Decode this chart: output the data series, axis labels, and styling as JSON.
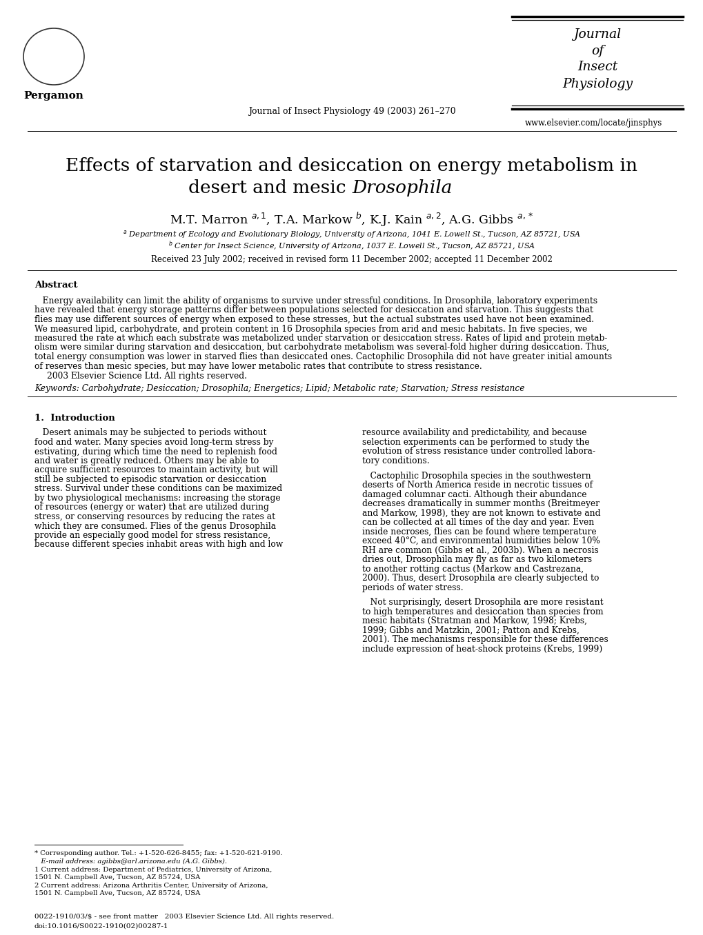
{
  "background_color": "#ffffff",
  "journal_name_lines": [
    "Journal",
    "of",
    "Insect",
    "Physiology"
  ],
  "journal_ref": "Journal of Insect Physiology 49 (2003) 261–270",
  "website": "www.elsevier.com/locate/jinsphys",
  "publisher": "Pergamon",
  "title_line1": "Effects of starvation and desiccation on energy metabolism in",
  "title_line2_normal": "desert and mesic ",
  "title_line2_italic": "Drosophila",
  "authors_text": "M.T. Marron $^{a,1}$, T.A. Markow $^{b}$, K.J. Kain $^{a,2}$, A.G. Gibbs $^{a,*}$",
  "affil_a": "$^{a}$ Department of Ecology and Evolutionary Biology, University of Arizona, 1041 E. Lowell St., Tucson, AZ 85721, USA",
  "affil_b": "$^{b}$ Center for Insect Science, University of Arizona, 1037 E. Lowell St., Tucson, AZ 85721, USA",
  "received": "Received 23 July 2002; received in revised form 11 December 2002; accepted 11 December 2002",
  "abstract_title": "Abstract",
  "keywords_label": "Keywords:",
  "keywords_text": " Carbohydrate; Desiccation; Drosophila; Energetics; Lipid; Metabolic rate; Starvation; Stress resistance",
  "section1_title": "1.  Introduction",
  "copyright": "2003 Elsevier Science Ltd. All rights reserved.",
  "footnote_star": "* Corresponding author. Tel.: +1-520-626-8455; fax: +1-520-621-9190.",
  "footnote_email_label": "E-mail address:",
  "footnote_email": " agibbs@arl.arizona.edu (A.G. Gibbs).",
  "footnote_1": "1 Current address: Department of Pediatrics, University of Arizona,",
  "footnote_1b": "1501 N. Campbell Ave, Tucson, AZ 85724, USA",
  "footnote_2": "2 Current address: Arizona Arthritis Center, University of Arizona,",
  "footnote_2b": "1501 N. Campbell Ave, Tucson, AZ 85724, USA",
  "bottom_left": "0022-1910/03/$ - see front matter   2003 Elsevier Science Ltd. All rights reserved.",
  "bottom_doi": "doi:10.1016/S0022-1910(02)00287-1",
  "abstract_lines": [
    "   Energy availability can limit the ability of organisms to survive under stressful conditions. In Drosophila, laboratory experiments",
    "have revealed that energy storage patterns differ between populations selected for desiccation and starvation. This suggests that",
    "flies may use different sources of energy when exposed to these stresses, but the actual substrates used have not been examined.",
    "We measured lipid, carbohydrate, and protein content in 16 Drosophila species from arid and mesic habitats. In five species, we",
    "measured the rate at which each substrate was metabolized under starvation or desiccation stress. Rates of lipid and protein metab-",
    "olism were similar during starvation and desiccation, but carbohydrate metabolism was several-fold higher during desiccation. Thus,",
    "total energy consumption was lower in starved flies than desiccated ones. Cactophilic Drosophila did not have greater initial amounts",
    "of reserves than mesic species, but may have lower metabolic rates that contribute to stress resistance."
  ],
  "intro_col1_lines": [
    "   Desert animals may be subjected to periods without",
    "food and water. Many species avoid long-term stress by",
    "estivating, during which time the need to replenish food",
    "and water is greatly reduced. Others may be able to",
    "acquire sufficient resources to maintain activity, but will",
    "still be subjected to episodic starvation or desiccation",
    "stress. Survival under these conditions can be maximized",
    "by two physiological mechanisms: increasing the storage",
    "of resources (energy or water) that are utilized during",
    "stress, or conserving resources by reducing the rates at",
    "which they are consumed. Flies of the genus Drosophila",
    "provide an especially good model for stress resistance,",
    "because different species inhabit areas with high and low"
  ],
  "intro_col2_p1_lines": [
    "resource availability and predictability, and because",
    "selection experiments can be performed to study the",
    "evolution of stress resistance under controlled labora-",
    "tory conditions."
  ],
  "intro_col2_p2_lines": [
    "   Cactophilic Drosophila species in the southwestern",
    "deserts of North America reside in necrotic tissues of",
    "damaged columnar cacti. Although their abundance",
    "decreases dramatically in summer months (Breitmeyer",
    "and Markow, 1998), they are not known to estivate and",
    "can be collected at all times of the day and year. Even",
    "inside necroses, flies can be found where temperature",
    "exceed 40°C, and environmental humidities below 10%",
    "RH are common (Gibbs et al., 2003b). When a necrosis",
    "dries out, Drosophila may fly as far as two kilometers",
    "to another rotting cactus (Markow and Castrezana,",
    "2000). Thus, desert Drosophila are clearly subjected to",
    "periods of water stress."
  ],
  "intro_col2_p3_lines": [
    "   Not surprisingly, desert Drosophila are more resistant",
    "to high temperatures and desiccation than species from",
    "mesic habitats (Stratman and Markow, 1998; Krebs,",
    "1999; Gibbs and Matzkin, 2001; Patton and Krebs,",
    "2001). The mechanisms responsible for these differences",
    "include expression of heat-shock proteins (Krebs, 1999)"
  ]
}
